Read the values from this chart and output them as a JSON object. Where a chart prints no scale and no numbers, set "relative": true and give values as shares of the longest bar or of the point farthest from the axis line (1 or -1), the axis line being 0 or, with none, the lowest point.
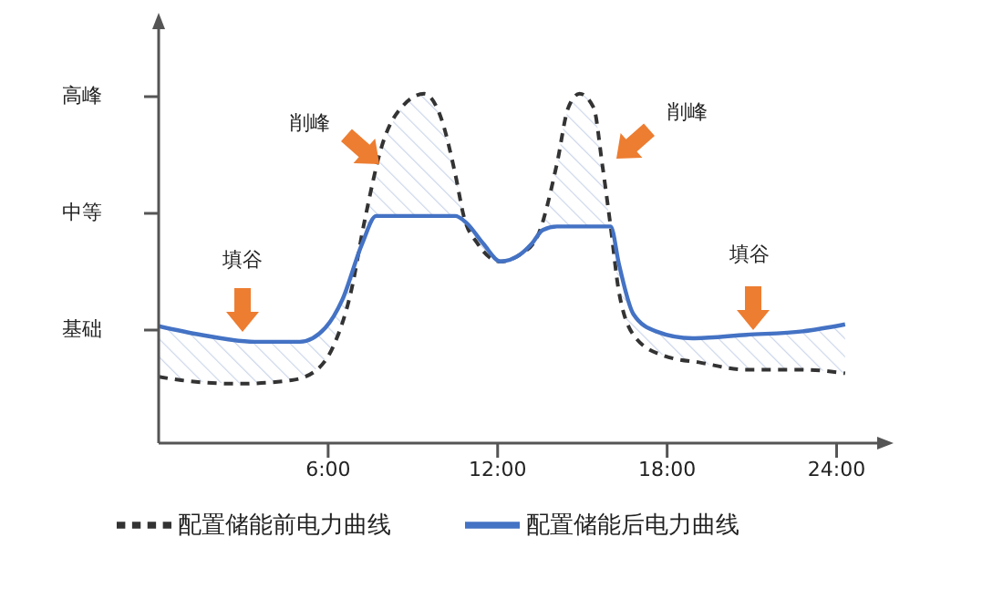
{
  "chart_data": {
    "type": "line",
    "relative": true,
    "xlim": [
      0,
      25.5
    ],
    "xticks": [
      {
        "value": 6,
        "label": "6:00"
      },
      {
        "value": 12,
        "label": "12:00"
      },
      {
        "value": 18,
        "label": "18:00"
      },
      {
        "value": 24,
        "label": "24:00"
      }
    ],
    "series": [
      {
        "name": "配置储能前电力曲线",
        "color": "#333333",
        "line_style": "dashed",
        "x": [
          0,
          0.8,
          2.8,
          4.7,
          5.6,
          6.2,
          6.8,
          7.3,
          7.9,
          8.7,
          9.4,
          10,
          10.5,
          10.8,
          11.3,
          12.1,
          12.8,
          13.4,
          14.1,
          14.5,
          14.9,
          15.4,
          15.7,
          16,
          16.3,
          16.9,
          17.9,
          19.2,
          20.8,
          22.8,
          24.3
        ],
        "values": [
          0.19,
          0.18,
          0.17,
          0.18,
          0.21,
          0.28,
          0.43,
          0.64,
          0.85,
          0.97,
          1,
          0.93,
          0.77,
          0.65,
          0.57,
          0.52,
          0.54,
          0.59,
          0.8,
          0.96,
          1,
          0.96,
          0.8,
          0.62,
          0.43,
          0.3,
          0.25,
          0.23,
          0.21,
          0.21,
          0.2
        ]
      },
      {
        "name": "配置储能后电力曲线",
        "color": "#4472c4",
        "line_style": "solid",
        "x": [
          0,
          1.5,
          3.4,
          5,
          5.9,
          6.5,
          7.2,
          7.7,
          8.6,
          9.4,
          10,
          10.5,
          10.9,
          11.5,
          12.1,
          12.8,
          13.2,
          13.6,
          14.1,
          14.4,
          14.9,
          15.4,
          15.7,
          16,
          16.3,
          16.8,
          17.6,
          18.9,
          20.8,
          22.8,
          24.3
        ],
        "values": [
          0.335,
          0.31,
          0.29,
          0.29,
          0.33,
          0.41,
          0.57,
          0.65,
          0.65,
          0.65,
          0.65,
          0.65,
          0.63,
          0.57,
          0.52,
          0.54,
          0.57,
          0.61,
          0.62,
          0.62,
          0.62,
          0.62,
          0.62,
          0.62,
          0.51,
          0.37,
          0.32,
          0.3,
          0.31,
          0.32,
          0.34
        ],
        "lower": [
          0.19,
          0.175,
          0.17,
          0.19,
          0.24,
          0.35,
          0.57,
          0.65,
          0.65,
          0.65,
          0.65,
          0.65,
          0.63,
          0.55,
          0.52,
          0.54,
          0.57,
          0.61,
          0.62,
          0.62,
          0.62,
          0.62,
          0.62,
          0.62,
          0.43,
          0.31,
          0.26,
          0.235,
          0.21,
          0.21,
          0.2
        ],
        "upper": [
          0.335,
          0.31,
          0.29,
          0.29,
          0.33,
          0.41,
          0.6,
          0.78,
          0.96,
          1,
          0.93,
          0.77,
          0.63,
          0.57,
          0.52,
          0.54,
          0.57,
          0.65,
          0.8,
          0.93,
          1,
          0.96,
          0.8,
          0.62,
          0.51,
          0.37,
          0.32,
          0.3,
          0.31,
          0.32,
          0.34
        ]
      }
    ],
    "annotations": [
      "高峰",
      "中等",
      "基础",
      "削峰",
      "削峰",
      "填谷",
      "填谷"
    ],
    "legend": "bottom",
    "marker": "none"
  }
}
